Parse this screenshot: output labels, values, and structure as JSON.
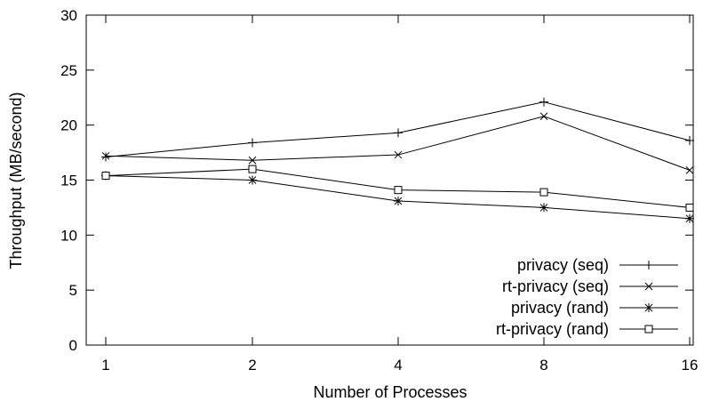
{
  "chart_data": {
    "type": "line",
    "xlabel": "Number of Processes",
    "ylabel": "Throughput (MB/second)",
    "ylim": [
      0,
      30
    ],
    "yticks": [
      0,
      5,
      10,
      15,
      20,
      25,
      30
    ],
    "categories": [
      "1",
      "2",
      "4",
      "8",
      "16"
    ],
    "grid": false,
    "legend_position": "bottom-right",
    "series": [
      {
        "name": "privacy (seq)",
        "marker": "plus",
        "values": [
          17.1,
          18.4,
          19.3,
          22.1,
          18.6
        ]
      },
      {
        "name": "rt-privacy (seq)",
        "marker": "cross",
        "values": [
          17.2,
          16.8,
          17.3,
          20.8,
          15.9
        ]
      },
      {
        "name": "privacy (rand)",
        "marker": "star",
        "values": [
          15.4,
          15.0,
          13.1,
          12.5,
          11.5
        ]
      },
      {
        "name": "rt-privacy (rand)",
        "marker": "square",
        "values": [
          15.4,
          16.0,
          14.1,
          13.9,
          12.5
        ]
      }
    ]
  }
}
